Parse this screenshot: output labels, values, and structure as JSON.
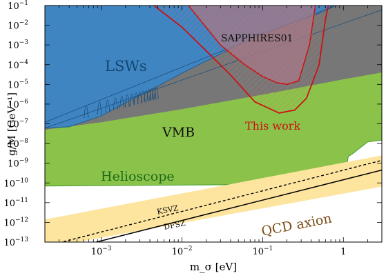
{
  "chart_data": {
    "type": "area",
    "xlabel": "m_σ [eV]",
    "ylabel": "g/M [GeV⁻¹]",
    "xscale": "log",
    "yscale": "log",
    "xlim": [
      0.0002,
      3
    ],
    "ylim": [
      1e-13,
      0.1
    ],
    "grid": false,
    "x_ticks": [
      {
        "value": 0.001,
        "base": "10",
        "exp": "−3"
      },
      {
        "value": 0.01,
        "base": "10",
        "exp": "−2"
      },
      {
        "value": 0.1,
        "base": "10",
        "exp": "−1"
      },
      {
        "value": 1,
        "base": "1",
        "exp": ""
      }
    ],
    "y_ticks": [
      {
        "value": 0.1,
        "exp": "−1"
      },
      {
        "value": 0.01,
        "exp": "−2"
      },
      {
        "value": 0.001,
        "exp": "−3"
      },
      {
        "value": 0.0001,
        "exp": "−4"
      },
      {
        "value": 1e-05,
        "exp": "−5"
      },
      {
        "value": 1e-06,
        "exp": "−6"
      },
      {
        "value": 1e-07,
        "exp": "−7"
      },
      {
        "value": 1e-08,
        "exp": "−8"
      },
      {
        "value": 1e-09,
        "exp": "−9"
      },
      {
        "value": 1e-10,
        "exp": "−10"
      },
      {
        "value": 1e-11,
        "exp": "−11"
      },
      {
        "value": 1e-12,
        "exp": "−12"
      },
      {
        "value": 1e-13,
        "exp": "−13"
      }
    ],
    "regions": [
      {
        "name": "Helioscope",
        "color": "#8bc34a",
        "boundary": [
          [
            0.0002,
            7e-11
          ],
          [
            0.03,
            8e-11
          ],
          [
            0.5,
            1.1e-10
          ],
          [
            1.05,
            2e-10
          ],
          [
            1.15,
            2.2e-09
          ],
          [
            1.3,
            3e-09
          ],
          [
            2.0,
            1.2e-08
          ],
          [
            3,
            1.5e-08
          ]
        ]
      },
      {
        "name": "VMB",
        "color": "#777777",
        "boundary": [
          [
            0.0002,
            5e-08
          ],
          [
            0.001,
            1.2e-07
          ],
          [
            0.01,
            5.5e-07
          ],
          [
            0.1,
            3e-06
          ],
          [
            1,
            1.8e-05
          ],
          [
            3,
            4e-05
          ]
        ]
      },
      {
        "name": "LSWs",
        "color": "#3f85c2",
        "boundary": [
          [
            0.0002,
            6e-08
          ],
          [
            0.0004,
            7e-08
          ],
          [
            0.001,
            2.5e-07
          ],
          [
            0.0023,
            1.6e-06
          ],
          [
            0.005,
            8e-06
          ],
          [
            0.01,
            3.7e-05
          ],
          [
            0.05,
            0.001
          ],
          [
            0.1,
            0.004
          ],
          [
            0.5,
            0.04
          ],
          [
            0.8,
            0.1
          ]
        ]
      },
      {
        "name": "SAPPHIRES01",
        "color": "#a17888",
        "boundary": [
          [
            0.012,
            0.1
          ],
          [
            0.03,
            0.001
          ],
          [
            0.06,
            0.0001
          ],
          [
            0.1,
            2.5e-05
          ],
          [
            0.15,
            1.2e-05
          ],
          [
            0.2,
            1e-05
          ],
          [
            0.28,
            1.5e-05
          ],
          [
            0.38,
            0.001
          ],
          [
            0.45,
            0.1
          ]
        ]
      },
      {
        "name": "This work",
        "color": "#cc1111",
        "boundary": [
          [
            0.0045,
            0.1
          ],
          [
            0.01,
            0.008
          ],
          [
            0.02,
            0.0005
          ],
          [
            0.04,
            3e-05
          ],
          [
            0.08,
            1.3e-06
          ],
          [
            0.16,
            3.5e-07
          ],
          [
            0.25,
            5e-07
          ],
          [
            0.35,
            2e-06
          ],
          [
            0.5,
            0.0001
          ],
          [
            0.6,
            0.02
          ],
          [
            0.65,
            0.1
          ]
        ]
      }
    ],
    "qcd_axion": {
      "band_low": [
        [
          0.0002,
          5e-14
        ],
        [
          3,
          6.5e-11
        ]
      ],
      "band_high": [
        [
          0.0002,
          1.4e-12
        ],
        [
          3,
          2.5e-09
        ]
      ],
      "ksvz": [
        [
          0.0002,
          6e-14
        ],
        [
          3,
          1.4e-09
        ]
      ],
      "dfsz": [
        [
          0.0002,
          2.2e-14
        ],
        [
          3,
          4.5e-10
        ]
      ],
      "band_color": "#fde5a0"
    },
    "labels": {
      "lsw": "LSWs",
      "sapphires": "SAPPHIRES01",
      "vmb": "VMB",
      "this_work": "This work",
      "helioscope": "Helioscope",
      "ksvz": "KSVZ",
      "dfsz": "DFSZ",
      "qcd_axion": "QCD axion"
    }
  }
}
